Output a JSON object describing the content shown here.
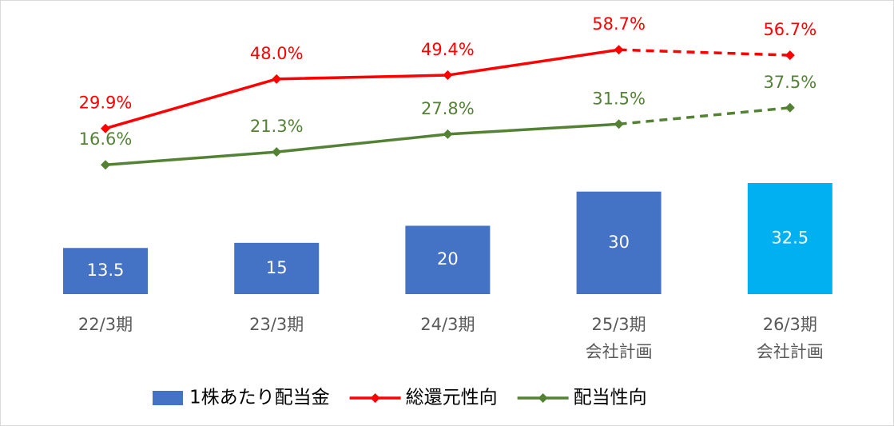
{
  "chart_data": {
    "type": "bar-line",
    "categories": [
      "22/3期",
      "23/3期",
      "24/3期",
      "25/3期\n会社計画",
      "26/3期\n会社計画"
    ],
    "series": [
      {
        "name": "1株あたり配当金",
        "type": "bar",
        "color": "#4472c4",
        "colors": [
          "#4472c4",
          "#4472c4",
          "#4472c4",
          "#4472c4",
          "#00b0f0"
        ],
        "values": [
          13.5,
          15,
          20,
          30,
          32.5
        ]
      },
      {
        "name": "総還元性向",
        "type": "line",
        "color": "#ff0000",
        "values": [
          29.9,
          48.0,
          49.4,
          58.7,
          56.7
        ],
        "value_labels": [
          "29.9%",
          "48.0%",
          "49.4%",
          "58.7%",
          "56.7%"
        ],
        "dashed_from": 3
      },
      {
        "name": "配当性向",
        "type": "line",
        "color": "#548235",
        "values": [
          16.6,
          21.3,
          27.8,
          31.5,
          37.5
        ],
        "value_labels": [
          "16.6%",
          "21.3%",
          "27.8%",
          "31.5%",
          "37.5%"
        ],
        "dashed_from": 3
      }
    ],
    "legend": "bottom"
  }
}
